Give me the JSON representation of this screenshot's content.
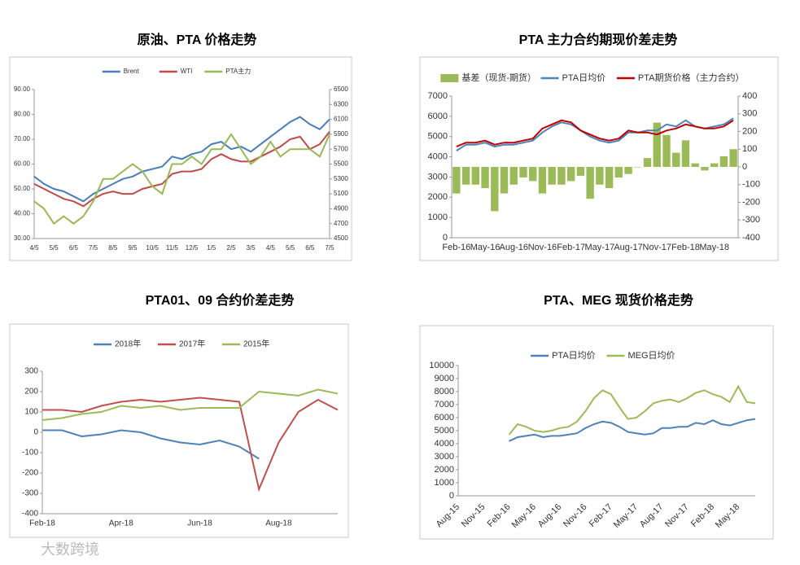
{
  "chart_data": [
    {
      "type": "line",
      "title": "原油、PTA 价格走势",
      "categories": [
        "4/5",
        null,
        "5/5",
        null,
        "6/5",
        null,
        "7/5",
        null,
        "8/5",
        null,
        "9/5",
        null,
        "10/5",
        null,
        "11/5",
        null,
        "12/5",
        null,
        "1/5",
        null,
        "2/5",
        null,
        "3/5",
        null,
        "4/5",
        null,
        "5/5",
        null,
        "6/5",
        null,
        "7/5"
      ],
      "series": [
        {
          "name": "Brent",
          "color": "#4a7ebb",
          "values": [
            55,
            52,
            50,
            49,
            47,
            45,
            48,
            50,
            52,
            54,
            55,
            57,
            58,
            59,
            63,
            62,
            64,
            65,
            68,
            69,
            66,
            67,
            65,
            68,
            71,
            74,
            77,
            79,
            76,
            74,
            78
          ]
        },
        {
          "name": "WTI",
          "color": "#be4b48",
          "values": [
            52,
            50,
            48,
            46,
            45,
            43,
            46,
            48,
            49,
            48,
            48,
            50,
            51,
            52,
            56,
            57,
            57,
            58,
            62,
            64,
            62,
            61,
            61,
            63,
            65,
            67,
            70,
            71,
            66,
            68,
            73
          ]
        },
        {
          "name": "PTA主力",
          "color": "#98b954",
          "axis": "y2",
          "values": [
            5000,
            4900,
            4700,
            4800,
            4700,
            4800,
            5000,
            5300,
            5300,
            5400,
            5500,
            5400,
            5200,
            5100,
            5500,
            5500,
            5600,
            5500,
            5700,
            5700,
            5900,
            5700,
            5500,
            5600,
            5800,
            5600,
            5700,
            5700,
            5700,
            5600,
            5900
          ]
        }
      ],
      "ylim": [
        30,
        90
      ],
      "yticks": [
        {
          "value": 30,
          "label": "30.00"
        },
        {
          "value": 40,
          "label": "40.00"
        },
        {
          "value": 50,
          "label": "50.00"
        },
        {
          "value": 60,
          "label": "60.00"
        },
        {
          "value": 70,
          "label": "70.00"
        },
        {
          "value": 80,
          "label": "80.00"
        },
        {
          "value": 90,
          "label": "90.00"
        }
      ],
      "y2lim": [
        4500,
        6500
      ],
      "y2ticks": [
        4500,
        4700,
        4900,
        5100,
        5300,
        5500,
        5700,
        5900,
        6100,
        6300,
        6500
      ]
    },
    {
      "type": "combo",
      "title": "PTA 主力合约期现价差走势",
      "categories": [
        "Feb-16",
        null,
        null,
        "May-16",
        null,
        null,
        "Aug-16",
        null,
        null,
        "Nov-16",
        null,
        null,
        "Feb-17",
        null,
        null,
        "May-17",
        null,
        null,
        "Aug-17",
        null,
        null,
        "Nov-17",
        null,
        null,
        "Feb-18",
        null,
        null,
        "May-18",
        null,
        null
      ],
      "series": [
        {
          "name": "基差（现货-期货）",
          "color": "#9bbb59",
          "type": "bar",
          "axis": "y2",
          "values": [
            -150,
            -100,
            -100,
            -120,
            -250,
            -150,
            -100,
            -60,
            -80,
            -150,
            -100,
            -100,
            -80,
            -50,
            -180,
            -100,
            -120,
            -60,
            -40,
            0,
            50,
            250,
            180,
            80,
            150,
            20,
            -20,
            20,
            60,
            100
          ]
        },
        {
          "name": "PTA日均价",
          "color": "#4f81bd",
          "type": "line",
          "values": [
            4300,
            4600,
            4600,
            4700,
            4500,
            4600,
            4600,
            4700,
            4800,
            5200,
            5500,
            5700,
            5600,
            5300,
            5000,
            4800,
            4700,
            4800,
            5200,
            5200,
            5300,
            5300,
            5600,
            5500,
            5800,
            5500,
            5400,
            5500,
            5600,
            5900
          ]
        },
        {
          "name": "PTA期货价格（主力合约）",
          "color": "#c00000",
          "type": "line",
          "values": [
            4500,
            4700,
            4700,
            4800,
            4600,
            4700,
            4700,
            4800,
            4900,
            5400,
            5600,
            5800,
            5700,
            5300,
            5100,
            4900,
            4800,
            4900,
            5300,
            5200,
            5200,
            5100,
            5300,
            5400,
            5600,
            5500,
            5400,
            5400,
            5500,
            5800
          ]
        }
      ],
      "ylim": [
        0,
        7000
      ],
      "yticks": [
        0,
        1000,
        2000,
        3000,
        4000,
        5000,
        6000,
        7000
      ],
      "y2lim": [
        -400,
        400
      ],
      "y2ticks": [
        -400,
        -300,
        -200,
        -100,
        0,
        100,
        200,
        300,
        400
      ]
    },
    {
      "type": "line",
      "title": "PTA01、09 合约价差走势",
      "categories": [
        "Feb-18",
        null,
        null,
        null,
        "Apr-18",
        null,
        null,
        null,
        "Jun-18",
        null,
        null,
        null,
        "Aug-18",
        null,
        null,
        null
      ],
      "series": [
        {
          "name": "2018年",
          "color": "#4f81bd",
          "values": [
            10,
            10,
            -20,
            -10,
            10,
            0,
            -30,
            -50,
            -60,
            -40,
            -70,
            -130,
            null,
            null,
            null,
            null
          ]
        },
        {
          "name": "2017年",
          "color": "#c0504d",
          "values": [
            110,
            110,
            100,
            130,
            150,
            160,
            150,
            160,
            170,
            160,
            150,
            -280,
            -50,
            100,
            160,
            110
          ]
        },
        {
          "name": "2015年",
          "color": "#9bbb59",
          "values": [
            60,
            70,
            90,
            100,
            130,
            120,
            130,
            110,
            120,
            120,
            120,
            200,
            190,
            180,
            210,
            190
          ]
        }
      ],
      "ylim": [
        -400,
        300
      ],
      "yticks": [
        -400,
        -300,
        -200,
        -100,
        0,
        100,
        200,
        300
      ]
    },
    {
      "type": "line",
      "title": "PTA、MEG 现货价格走势",
      "categories": [
        "Aug-15",
        null,
        null,
        "Nov-15",
        null,
        null,
        "Feb-16",
        null,
        null,
        "May-16",
        null,
        null,
        "Aug-16",
        null,
        null,
        "Nov-16",
        null,
        null,
        "Feb-17",
        null,
        null,
        "May-17",
        null,
        null,
        "Aug-17",
        null,
        null,
        "Nov-17",
        null,
        null,
        "Feb-18",
        null,
        null,
        "May-18",
        null,
        null
      ],
      "series": [
        {
          "name": "PTA日均价",
          "color": "#4f81bd",
          "values": [
            null,
            null,
            null,
            null,
            null,
            null,
            4200,
            4500,
            4600,
            4700,
            4500,
            4600,
            4600,
            4700,
            4800,
            5200,
            5500,
            5700,
            5600,
            5300,
            4900,
            4800,
            4700,
            4800,
            5200,
            5200,
            5300,
            5300,
            5600,
            5500,
            5800,
            5500,
            5400,
            5600,
            5800,
            5900
          ]
        },
        {
          "name": "MEG日均价",
          "color": "#9bbb59",
          "values": [
            null,
            null,
            null,
            null,
            null,
            null,
            4700,
            5500,
            5300,
            5000,
            4900,
            5000,
            5200,
            5300,
            5700,
            6500,
            7500,
            8100,
            7800,
            6800,
            5900,
            6000,
            6500,
            7100,
            7300,
            7400,
            7200,
            7500,
            7900,
            8100,
            7800,
            7600,
            7200,
            8400,
            7200,
            7100
          ]
        }
      ],
      "ylim": [
        0,
        10000
      ],
      "yticks": [
        0,
        1000,
        2000,
        3000,
        4000,
        5000,
        6000,
        7000,
        8000,
        9000,
        10000
      ]
    }
  ],
  "watermark": "大数跨境"
}
